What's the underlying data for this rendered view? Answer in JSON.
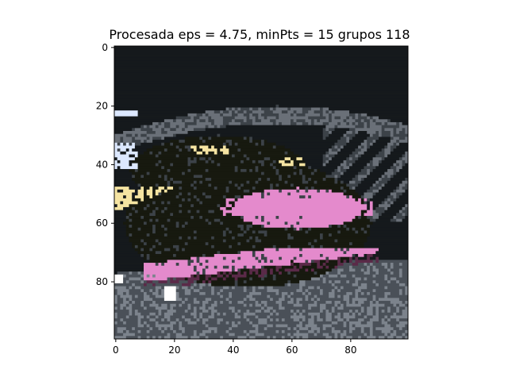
{
  "chart_data": {
    "type": "heatmap",
    "title": "Procesada eps = 4.75, minPts = 15 grupos 118",
    "xlabel": "",
    "ylabel": "",
    "xlim": [
      -0.5,
      99.5
    ],
    "ylim": [
      99.5,
      -0.5
    ],
    "x_ticks": [
      0,
      20,
      40,
      60,
      80
    ],
    "y_ticks": [
      0,
      20,
      40,
      60,
      80
    ],
    "x_tick_labels": [
      "0",
      "20",
      "40",
      "60",
      "80"
    ],
    "y_tick_labels": [
      "0",
      "20",
      "40",
      "60",
      "80"
    ],
    "image_size": [
      100,
      100
    ],
    "grid": false,
    "colors": {
      "sky": "#15191c",
      "railing": "#6a7078",
      "railing_dark": "#3c4248",
      "car_body": "#17190f",
      "pink": "#e48acc",
      "pink_shadow": "#5a2a48",
      "headlight": "#f5e4a2",
      "white": "#ffffff",
      "light_blue": "#dce8ff",
      "road": "#4a5058",
      "road_light": "#7c838c"
    }
  }
}
